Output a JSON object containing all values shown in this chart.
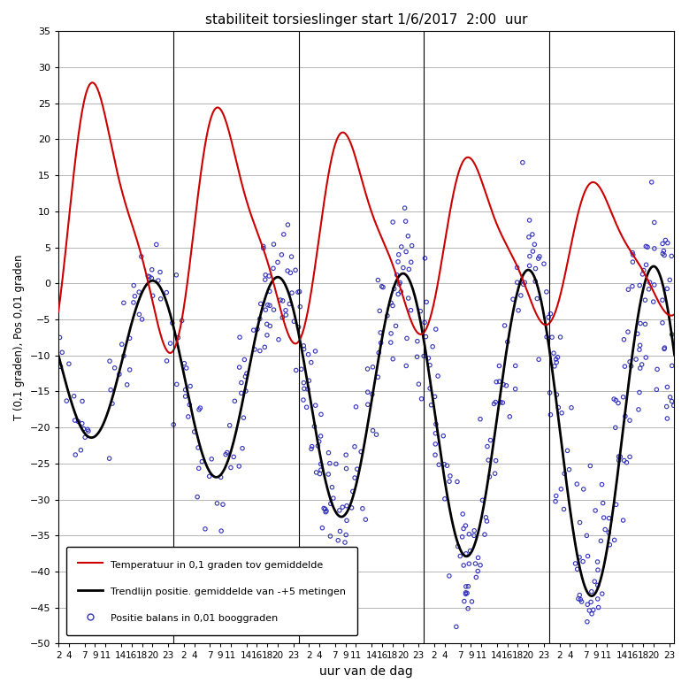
{
  "title": "stabiliteit torsieslinger start 1/6/2017  2:00  uur",
  "ylabel": "T (0,1 graden), Pos 0,01 graden",
  "xlabel": "uur van de dag",
  "ylim": [
    -50,
    35
  ],
  "yticks": [
    35,
    30,
    25,
    20,
    15,
    10,
    5,
    0,
    -5,
    -10,
    -15,
    -20,
    -25,
    -30,
    -35,
    -40,
    -45,
    -50
  ],
  "n_days": 5,
  "start_hour": 2,
  "temp_color": "#cc0000",
  "trend_color": "#000000",
  "scatter_color": "#3333bb",
  "background_color": "#ffffff",
  "grid_color": "#999999",
  "tick_hours_in_day": [
    2,
    4,
    7,
    9,
    11,
    14,
    16,
    18,
    20,
    23
  ],
  "tick_labels_in_day": [
    "2",
    "4",
    "7",
    "9",
    "11",
    "14",
    "16",
    "18",
    "20",
    "23"
  ],
  "day_separators": [
    22,
    46,
    70,
    94
  ],
  "legend_labels": [
    "Temperatuur in 0,1 graden tov gemiddelde",
    "Trendlijn positie. gemiddelde van -+5 metingen",
    "Positie balans in 0,01 booggraden"
  ]
}
